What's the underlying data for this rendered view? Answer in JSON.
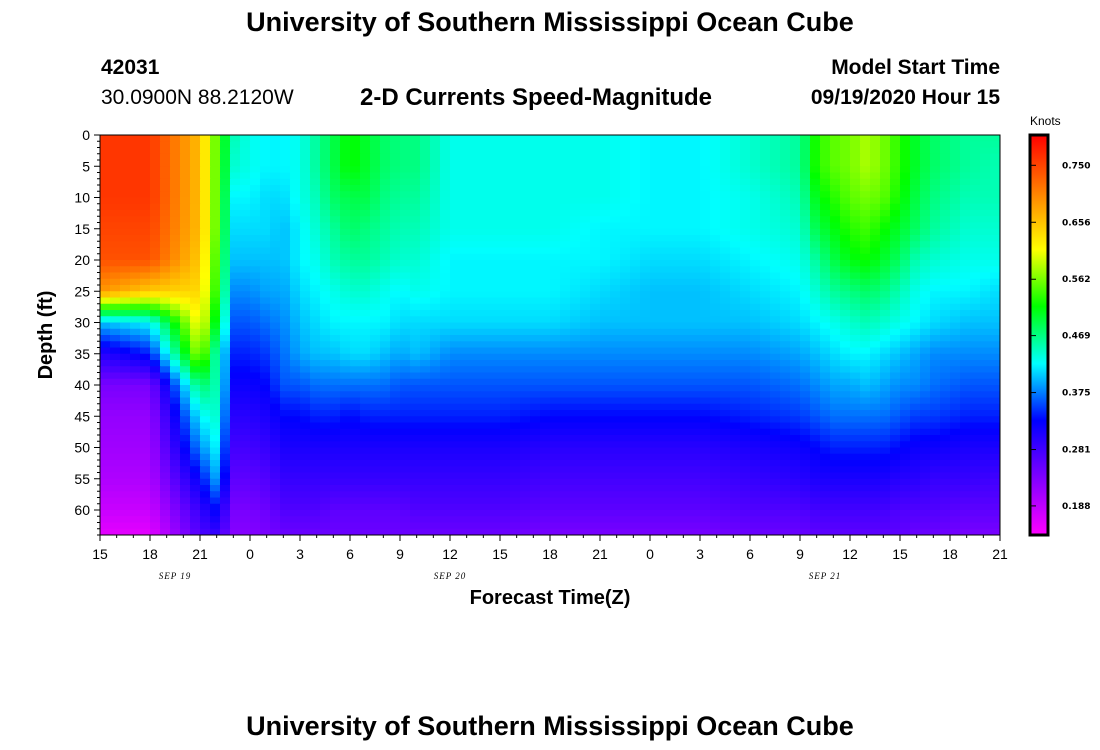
{
  "header": {
    "title_top": "University of Southern Mississippi Ocean Cube",
    "title_bottom": "University of Southern Mississippi Ocean Cube",
    "station_id": "42031",
    "station_coords": "30.0900N 88.2120W",
    "plot_title": "2-D Currents Speed-Magnitude",
    "model_start_label": "Model Start Time",
    "model_start_value": "09/19/2020 Hour 15"
  },
  "colors": {
    "magenta": "#ff00ff",
    "purple": "#8000ff",
    "blue": "#0000ff",
    "cyan": "#00ffff",
    "green": "#00ff00",
    "yellow": "#ffff00",
    "orange": "#ff8000",
    "red": "#ff0000"
  },
  "chart_data": {
    "type": "heatmap",
    "title": "2-D Currents Speed-Magnitude",
    "xlabel": "Forecast Time(Z)",
    "ylabel": "Depth (ft)",
    "x_ticks": [
      "15",
      "18",
      "21",
      "0",
      "3",
      "6",
      "9",
      "12",
      "15",
      "18",
      "21",
      "0",
      "3",
      "6",
      "9",
      "12",
      "15",
      "18",
      "21"
    ],
    "x_range_hours": [
      0,
      54
    ],
    "date_labels": [
      {
        "label": "SEP 19",
        "hour": 4.5
      },
      {
        "label": "SEP 20",
        "hour": 21
      },
      {
        "label": "SEP 21",
        "hour": 43.5
      }
    ],
    "y_ticks": [
      0,
      5,
      10,
      15,
      20,
      25,
      30,
      35,
      40,
      45,
      50,
      55,
      60
    ],
    "ylim": [
      0,
      64
    ],
    "y_inverted": true,
    "colorbar": {
      "title": "Knots",
      "ticks": [
        "0.750",
        "0.656",
        "0.562",
        "0.469",
        "0.375",
        "0.281",
        "0.188"
      ],
      "min": 0.14,
      "max": 0.8
    },
    "depths_ft": [
      0,
      5,
      10,
      15,
      20,
      25,
      30,
      35,
      40,
      45,
      50,
      55,
      60,
      64
    ],
    "hours": [
      0,
      3,
      6,
      7,
      8,
      9,
      10,
      11,
      12,
      13,
      14,
      15,
      16,
      17,
      18,
      19,
      21,
      24,
      27,
      30,
      33,
      36,
      39,
      42,
      43,
      44,
      45,
      46,
      47,
      48,
      49,
      50,
      52,
      54
    ],
    "speed_knots": [
      [
        0.76,
        0.76,
        0.66,
        0.55,
        0.45,
        0.43,
        0.42,
        0.42,
        0.43,
        0.46,
        0.49,
        0.52,
        0.5,
        0.48,
        0.47,
        0.47,
        0.43,
        0.43,
        0.43,
        0.43,
        0.42,
        0.42,
        0.44,
        0.46,
        0.53,
        0.55,
        0.56,
        0.58,
        0.56,
        0.53,
        0.5,
        0.48,
        0.46,
        0.46
      ],
      [
        0.76,
        0.76,
        0.66,
        0.55,
        0.44,
        0.43,
        0.42,
        0.42,
        0.43,
        0.46,
        0.49,
        0.52,
        0.5,
        0.48,
        0.47,
        0.47,
        0.43,
        0.43,
        0.43,
        0.43,
        0.42,
        0.42,
        0.44,
        0.46,
        0.53,
        0.55,
        0.56,
        0.58,
        0.56,
        0.53,
        0.5,
        0.48,
        0.46,
        0.45
      ],
      [
        0.76,
        0.76,
        0.66,
        0.55,
        0.42,
        0.42,
        0.41,
        0.41,
        0.43,
        0.45,
        0.48,
        0.49,
        0.49,
        0.47,
        0.46,
        0.46,
        0.43,
        0.43,
        0.43,
        0.43,
        0.42,
        0.42,
        0.43,
        0.45,
        0.51,
        0.53,
        0.55,
        0.56,
        0.55,
        0.52,
        0.49,
        0.47,
        0.45,
        0.45
      ],
      [
        0.75,
        0.75,
        0.66,
        0.55,
        0.41,
        0.41,
        0.41,
        0.4,
        0.42,
        0.44,
        0.46,
        0.48,
        0.47,
        0.46,
        0.45,
        0.45,
        0.43,
        0.43,
        0.43,
        0.42,
        0.42,
        0.42,
        0.43,
        0.44,
        0.49,
        0.51,
        0.53,
        0.54,
        0.52,
        0.5,
        0.48,
        0.46,
        0.44,
        0.44
      ],
      [
        0.74,
        0.74,
        0.65,
        0.54,
        0.4,
        0.4,
        0.4,
        0.4,
        0.42,
        0.43,
        0.45,
        0.46,
        0.46,
        0.45,
        0.44,
        0.44,
        0.42,
        0.42,
        0.42,
        0.42,
        0.41,
        0.41,
        0.42,
        0.43,
        0.46,
        0.49,
        0.51,
        0.52,
        0.5,
        0.48,
        0.45,
        0.44,
        0.43,
        0.43
      ],
      [
        0.69,
        0.65,
        0.64,
        0.53,
        0.38,
        0.38,
        0.39,
        0.39,
        0.41,
        0.42,
        0.43,
        0.44,
        0.44,
        0.43,
        0.42,
        0.43,
        0.42,
        0.42,
        0.42,
        0.41,
        0.4,
        0.4,
        0.41,
        0.42,
        0.44,
        0.46,
        0.47,
        0.48,
        0.47,
        0.45,
        0.43,
        0.42,
        0.42,
        0.41
      ],
      [
        0.4,
        0.42,
        0.62,
        0.5,
        0.36,
        0.36,
        0.37,
        0.38,
        0.4,
        0.41,
        0.42,
        0.42,
        0.42,
        0.42,
        0.41,
        0.41,
        0.41,
        0.41,
        0.41,
        0.4,
        0.4,
        0.4,
        0.4,
        0.41,
        0.42,
        0.43,
        0.44,
        0.45,
        0.44,
        0.43,
        0.42,
        0.41,
        0.4,
        0.4
      ],
      [
        0.3,
        0.34,
        0.58,
        0.45,
        0.34,
        0.34,
        0.35,
        0.37,
        0.39,
        0.4,
        0.4,
        0.41,
        0.41,
        0.4,
        0.39,
        0.4,
        0.38,
        0.38,
        0.38,
        0.38,
        0.38,
        0.38,
        0.38,
        0.39,
        0.4,
        0.41,
        0.42,
        0.42,
        0.41,
        0.4,
        0.39,
        0.38,
        0.38,
        0.38
      ],
      [
        0.24,
        0.24,
        0.48,
        0.45,
        0.32,
        0.32,
        0.33,
        0.36,
        0.36,
        0.37,
        0.37,
        0.37,
        0.37,
        0.37,
        0.36,
        0.36,
        0.36,
        0.36,
        0.36,
        0.36,
        0.36,
        0.36,
        0.36,
        0.37,
        0.38,
        0.39,
        0.39,
        0.4,
        0.39,
        0.38,
        0.38,
        0.37,
        0.36,
        0.36
      ],
      [
        0.22,
        0.22,
        0.42,
        0.44,
        0.3,
        0.3,
        0.31,
        0.33,
        0.33,
        0.34,
        0.34,
        0.33,
        0.34,
        0.34,
        0.34,
        0.34,
        0.34,
        0.34,
        0.33,
        0.33,
        0.33,
        0.33,
        0.34,
        0.35,
        0.36,
        0.37,
        0.37,
        0.37,
        0.37,
        0.36,
        0.35,
        0.35,
        0.34,
        0.34
      ],
      [
        0.21,
        0.21,
        0.38,
        0.42,
        0.28,
        0.28,
        0.29,
        0.31,
        0.31,
        0.31,
        0.31,
        0.31,
        0.31,
        0.31,
        0.31,
        0.31,
        0.31,
        0.31,
        0.3,
        0.3,
        0.3,
        0.3,
        0.31,
        0.32,
        0.33,
        0.34,
        0.34,
        0.34,
        0.34,
        0.33,
        0.32,
        0.32,
        0.31,
        0.31
      ],
      [
        0.2,
        0.2,
        0.33,
        0.39,
        0.26,
        0.26,
        0.27,
        0.29,
        0.29,
        0.29,
        0.29,
        0.29,
        0.29,
        0.29,
        0.29,
        0.29,
        0.29,
        0.29,
        0.28,
        0.28,
        0.28,
        0.28,
        0.29,
        0.3,
        0.31,
        0.31,
        0.31,
        0.31,
        0.31,
        0.3,
        0.3,
        0.29,
        0.29,
        0.28
      ],
      [
        0.18,
        0.18,
        0.29,
        0.33,
        0.24,
        0.24,
        0.25,
        0.27,
        0.27,
        0.27,
        0.26,
        0.26,
        0.26,
        0.26,
        0.26,
        0.27,
        0.27,
        0.27,
        0.26,
        0.26,
        0.26,
        0.26,
        0.27,
        0.27,
        0.28,
        0.28,
        0.28,
        0.28,
        0.28,
        0.27,
        0.27,
        0.27,
        0.26,
        0.26
      ],
      [
        0.16,
        0.16,
        0.27,
        0.29,
        0.23,
        0.23,
        0.24,
        0.25,
        0.25,
        0.25,
        0.25,
        0.25,
        0.25,
        0.25,
        0.25,
        0.25,
        0.25,
        0.25,
        0.24,
        0.24,
        0.24,
        0.24,
        0.25,
        0.25,
        0.26,
        0.26,
        0.26,
        0.26,
        0.26,
        0.26,
        0.25,
        0.25,
        0.24,
        0.24
      ]
    ]
  }
}
